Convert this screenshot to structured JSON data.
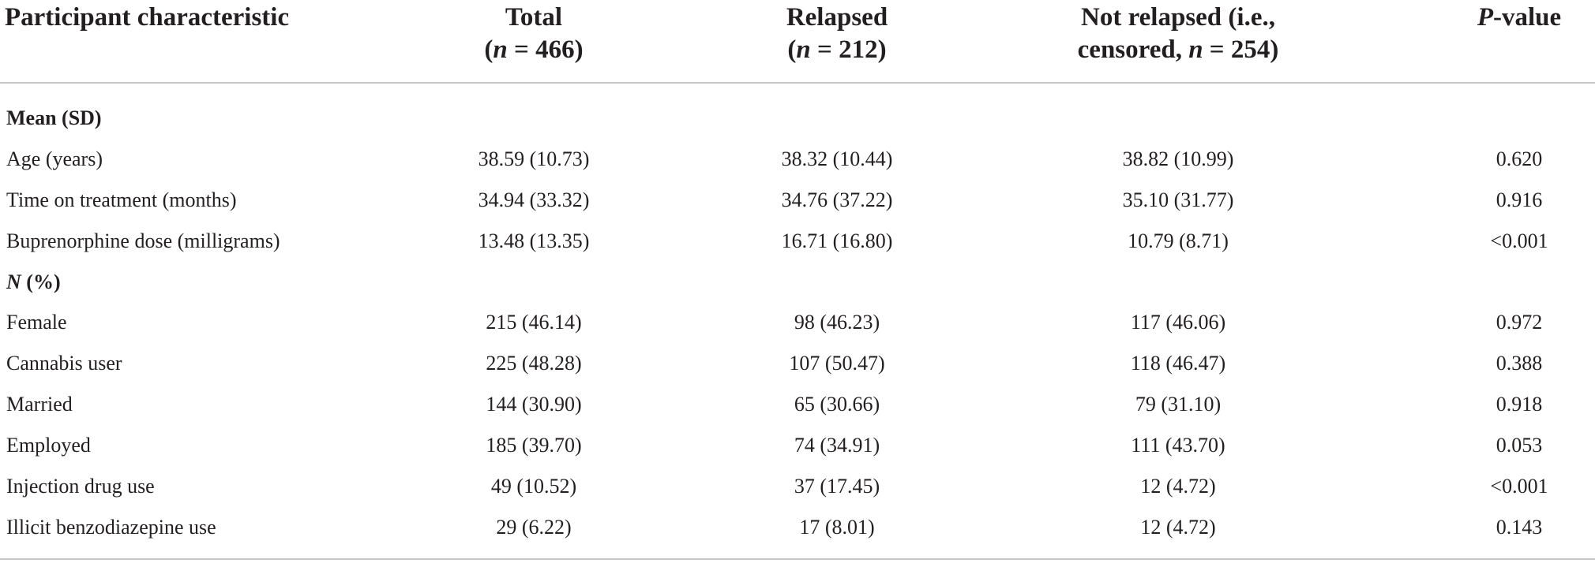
{
  "table": {
    "headers": {
      "characteristic": "Participant characteristic",
      "total_line1": "Total",
      "total_n": "n",
      "total_n_rest": " = 466)",
      "relapsed_line1": "Relapsed",
      "relapsed_n": "n",
      "relapsed_n_rest": " = 212)",
      "notrelapsed_line1": "Not relapsed (i.e.,",
      "notrelapsed_line2_pre": "censored, ",
      "notrelapsed_n": "n",
      "notrelapsed_n_rest": " = 254)",
      "pvalue_p": "P",
      "pvalue_rest": "-value"
    },
    "section_mean": {
      "label": "Mean (SD)"
    },
    "mean_rows": [
      {
        "label": "Age (years)",
        "total": "38.59 (10.73)",
        "relapsed": "38.32 (10.44)",
        "not_relapsed": "38.82 (10.99)",
        "p": "0.620"
      },
      {
        "label": "Time on treatment (months)",
        "total": "34.94 (33.32)",
        "relapsed": "34.76 (37.22)",
        "not_relapsed": "35.10 (31.77)",
        "p": "0.916"
      },
      {
        "label": "Buprenorphine dose (milligrams)",
        "total": "13.48 (13.35)",
        "relapsed": "16.71 (16.80)",
        "not_relapsed": "10.79 (8.71)",
        "p": "<0.001"
      }
    ],
    "section_n": {
      "n_italic": "N",
      "rest": " (%)"
    },
    "n_rows": [
      {
        "label": "Female",
        "total": "215 (46.14)",
        "relapsed": "98 (46.23)",
        "not_relapsed": "117 (46.06)",
        "p": "0.972"
      },
      {
        "label": "Cannabis user",
        "total": "225 (48.28)",
        "relapsed": "107 (50.47)",
        "not_relapsed": "118 (46.47)",
        "p": "0.388"
      },
      {
        "label": "Married",
        "total": "144 (30.90)",
        "relapsed": "65 (30.66)",
        "not_relapsed": "79 (31.10)",
        "p": "0.918"
      },
      {
        "label": "Employed",
        "total": "185 (39.70)",
        "relapsed": "74 (34.91)",
        "not_relapsed": "111 (43.70)",
        "p": "0.053"
      },
      {
        "label": "Injection drug use",
        "total": "49 (10.52)",
        "relapsed": "37 (17.45)",
        "not_relapsed": "12 (4.72)",
        "p": "<0.001"
      },
      {
        "label": "Illicit benzodiazepine use",
        "total": "29 (6.22)",
        "relapsed": "17 (8.01)",
        "not_relapsed": "12 (4.72)",
        "p": "0.143"
      }
    ]
  }
}
